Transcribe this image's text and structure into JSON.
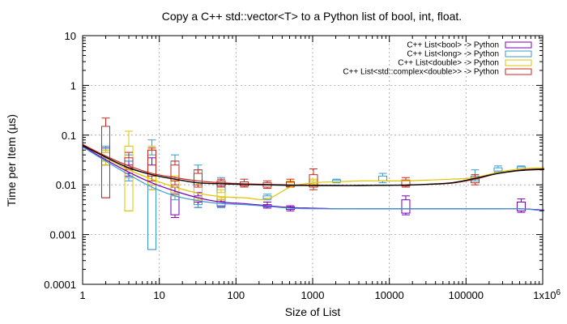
{
  "chart_data": {
    "type": "line",
    "title": "Copy a C++ std::vector<T> to a Python list of bool, int, float.",
    "xlabel": "Size of List",
    "ylabel": "Time per Item (µs)",
    "x_scale": "log",
    "y_scale": "log",
    "xlim": [
      1,
      1000000
    ],
    "ylim": [
      0.0001,
      10
    ],
    "grid": true,
    "legend_position": "top-right",
    "x_ticks": [
      {
        "value": 1,
        "label": "1"
      },
      {
        "value": 10,
        "label": "10"
      },
      {
        "value": 100,
        "label": "100"
      },
      {
        "value": 1000,
        "label": "1000"
      },
      {
        "value": 10000,
        "label": "10000"
      },
      {
        "value": 100000,
        "label": "100000"
      },
      {
        "value": 1000000,
        "label": "1x10^6"
      }
    ],
    "y_ticks": [
      {
        "value": 0.0001,
        "label": "0.0001"
      },
      {
        "value": 0.001,
        "label": "0.001"
      },
      {
        "value": 0.01,
        "label": "0.01"
      },
      {
        "value": 0.1,
        "label": "0.1"
      },
      {
        "value": 1,
        "label": "1"
      },
      {
        "value": 10,
        "label": "10"
      }
    ],
    "series": [
      {
        "name": "C++ List<bool> -> Python",
        "color": "#7a00b8",
        "x": [
          1,
          2,
          4,
          8,
          16,
          32,
          64,
          128,
          256,
          512,
          1024,
          2048,
          4096,
          8192,
          16384,
          32768,
          65536,
          131072,
          262144,
          524288,
          1048576
        ],
        "y": [
          0.06,
          0.032,
          0.018,
          0.011,
          0.0075,
          0.0055,
          0.0045,
          0.0042,
          0.0038,
          0.0035,
          0.0034,
          0.0033,
          0.0033,
          0.0033,
          0.0033,
          0.0033,
          0.0033,
          0.0033,
          0.0033,
          0.0033,
          0.0031
        ],
        "boxes": [
          {
            "x": 2,
            "min": 0.025,
            "q1": 0.03,
            "q3": 0.045,
            "max": 0.055
          },
          {
            "x": 4,
            "min": 0.015,
            "q1": 0.017,
            "q3": 0.025,
            "max": 0.03
          },
          {
            "x": 8,
            "min": 0.008,
            "q1": 0.01,
            "q3": 0.025,
            "max": 0.035
          },
          {
            "x": 16,
            "min": 0.0022,
            "q1": 0.0025,
            "q3": 0.0065,
            "max": 0.009
          },
          {
            "x": 32,
            "min": 0.0035,
            "q1": 0.0045,
            "q3": 0.006,
            "max": 0.007
          },
          {
            "x": 64,
            "min": 0.0035,
            "q1": 0.0037,
            "q3": 0.0046,
            "max": 0.005
          },
          {
            "x": 256,
            "min": 0.0034,
            "q1": 0.0036,
            "q3": 0.004,
            "max": 0.0045
          },
          {
            "x": 512,
            "min": 0.003,
            "q1": 0.0032,
            "q3": 0.0036,
            "max": 0.0038
          },
          {
            "x": 16384,
            "min": 0.0025,
            "q1": 0.0027,
            "q3": 0.005,
            "max": 0.006
          },
          {
            "x": 524288,
            "min": 0.0028,
            "q1": 0.003,
            "q3": 0.0045,
            "max": 0.0052
          }
        ]
      },
      {
        "name": "C++ List<long> -> Python",
        "color": "#3a9ad0",
        "x": [
          1,
          2,
          4,
          8,
          16,
          32,
          64,
          128,
          256,
          512,
          1024,
          2048,
          4096,
          8192,
          16384,
          32768,
          65536,
          131072,
          262144,
          524288,
          1048576
        ],
        "y": [
          0.058,
          0.03,
          0.016,
          0.009,
          0.006,
          0.0048,
          0.0042,
          0.004,
          0.0037,
          0.0034,
          0.0033,
          0.0033,
          0.0033,
          0.0033,
          0.0033,
          0.0033,
          0.0033,
          0.0033,
          0.0033,
          0.0033,
          0.003
        ],
        "boxes": [
          {
            "x": 2,
            "min": 0.03,
            "q1": 0.035,
            "q3": 0.05,
            "max": 0.06
          },
          {
            "x": 4,
            "min": 0.012,
            "q1": 0.014,
            "q3": 0.03,
            "max": 0.04
          },
          {
            "x": 8,
            "min": 0.0005,
            "q1": 0.0005,
            "q3": 0.04,
            "max": 0.08
          },
          {
            "x": 16,
            "min": 0.005,
            "q1": 0.006,
            "q3": 0.03,
            "max": 0.04
          },
          {
            "x": 32,
            "min": 0.0035,
            "q1": 0.004,
            "q3": 0.02,
            "max": 0.025
          },
          {
            "x": 64,
            "min": 0.0035,
            "q1": 0.0038,
            "q3": 0.012,
            "max": 0.014
          },
          {
            "x": 256,
            "min": 0.005,
            "q1": 0.0053,
            "q3": 0.006,
            "max": 0.0065
          },
          {
            "x": 2048,
            "min": 0.011,
            "q1": 0.0115,
            "q3": 0.0125,
            "max": 0.013
          },
          {
            "x": 8192,
            "min": 0.011,
            "q1": 0.012,
            "q3": 0.015,
            "max": 0.017
          },
          {
            "x": 131072,
            "min": 0.012,
            "q1": 0.013,
            "q3": 0.015,
            "max": 0.02
          },
          {
            "x": 262144,
            "min": 0.018,
            "q1": 0.019,
            "q3": 0.022,
            "max": 0.024
          },
          {
            "x": 524288,
            "min": 0.02,
            "q1": 0.021,
            "q3": 0.023,
            "max": 0.024
          }
        ]
      },
      {
        "name": "C++ List<double> -> Python",
        "color": "#e0c400",
        "x": [
          1,
          2,
          4,
          8,
          16,
          32,
          64,
          128,
          256,
          512,
          1024,
          2048,
          4096,
          8192,
          16384,
          32768,
          65536,
          131072,
          262144,
          524288,
          1048576
        ],
        "y": [
          0.065,
          0.035,
          0.02,
          0.013,
          0.009,
          0.0068,
          0.0058,
          0.0055,
          0.0052,
          0.009,
          0.011,
          0.0115,
          0.012,
          0.012,
          0.012,
          0.0125,
          0.013,
          0.014,
          0.018,
          0.021,
          0.022
        ],
        "boxes": [
          {
            "x": 2,
            "min": 0.025,
            "q1": 0.03,
            "q3": 0.045,
            "max": 0.05
          },
          {
            "x": 4,
            "min": 0.003,
            "q1": 0.003,
            "q3": 0.06,
            "max": 0.12
          },
          {
            "x": 8,
            "min": 0.008,
            "q1": 0.01,
            "q3": 0.05,
            "max": 0.06
          },
          {
            "x": 16,
            "min": 0.006,
            "q1": 0.007,
            "q3": 0.012,
            "max": 0.015
          },
          {
            "x": 32,
            "min": 0.005,
            "q1": 0.0055,
            "q3": 0.009,
            "max": 0.011
          },
          {
            "x": 64,
            "min": 0.005,
            "q1": 0.0055,
            "q3": 0.007,
            "max": 0.008
          },
          {
            "x": 512,
            "min": 0.009,
            "q1": 0.0095,
            "q3": 0.011,
            "max": 0.012
          },
          {
            "x": 1024,
            "min": 0.01,
            "q1": 0.0105,
            "q3": 0.012,
            "max": 0.013
          }
        ]
      },
      {
        "name": "C++ List<std::complex<double>> -> Python",
        "color": "#c8281e",
        "x": [
          1,
          2,
          4,
          8,
          16,
          32,
          64,
          128,
          256,
          512,
          1024,
          2048,
          4096,
          8192,
          16384,
          32768,
          65536,
          131072,
          262144,
          524288,
          1048576
        ],
        "y": [
          0.065,
          0.038,
          0.024,
          0.017,
          0.014,
          0.012,
          0.011,
          0.0105,
          0.0102,
          0.01,
          0.0098,
          0.0097,
          0.0097,
          0.0098,
          0.0099,
          0.0102,
          0.0108,
          0.013,
          0.017,
          0.02,
          0.021
        ],
        "boxes": [
          {
            "x": 2,
            "min": 0.0055,
            "q1": 0.0055,
            "q3": 0.15,
            "max": 0.22
          },
          {
            "x": 4,
            "min": 0.02,
            "q1": 0.022,
            "q3": 0.035,
            "max": 0.045
          },
          {
            "x": 8,
            "min": 0.012,
            "q1": 0.015,
            "q3": 0.05,
            "max": 0.055
          },
          {
            "x": 16,
            "min": 0.01,
            "q1": 0.012,
            "q3": 0.025,
            "max": 0.03
          },
          {
            "x": 32,
            "min": 0.009,
            "q1": 0.01,
            "q3": 0.017,
            "max": 0.02
          },
          {
            "x": 64,
            "min": 0.009,
            "q1": 0.0095,
            "q3": 0.012,
            "max": 0.013
          },
          {
            "x": 128,
            "min": 0.009,
            "q1": 0.0095,
            "q3": 0.0115,
            "max": 0.013
          },
          {
            "x": 256,
            "min": 0.0085,
            "q1": 0.009,
            "q3": 0.011,
            "max": 0.012
          },
          {
            "x": 512,
            "min": 0.009,
            "q1": 0.0092,
            "q3": 0.0115,
            "max": 0.013
          },
          {
            "x": 1024,
            "min": 0.008,
            "q1": 0.009,
            "q3": 0.016,
            "max": 0.021
          },
          {
            "x": 16384,
            "min": 0.009,
            "q1": 0.0095,
            "q3": 0.0125,
            "max": 0.014
          },
          {
            "x": 131072,
            "min": 0.01,
            "q1": 0.011,
            "q3": 0.014,
            "max": 0.016
          }
        ]
      },
      {
        "name": "",
        "color": "#000000",
        "x": [
          1,
          2,
          4,
          8,
          16,
          32,
          64,
          128,
          256,
          512,
          1024,
          2048,
          4096,
          8192,
          16384,
          32768,
          65536,
          131072,
          262144,
          524288,
          1048576
        ],
        "y": [
          0.062,
          0.036,
          0.022,
          0.016,
          0.013,
          0.011,
          0.0105,
          0.0102,
          0.01,
          0.0098,
          0.0097,
          0.0097,
          0.0097,
          0.0098,
          0.0099,
          0.0103,
          0.011,
          0.0135,
          0.017,
          0.0195,
          0.0205
        ],
        "boxes": []
      }
    ]
  }
}
